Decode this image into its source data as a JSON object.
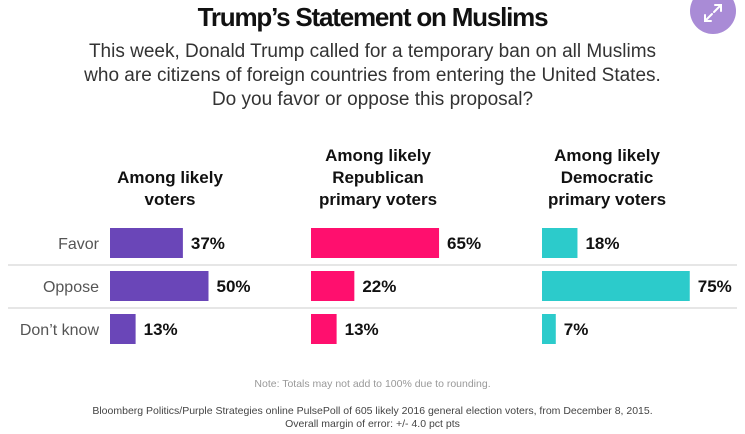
{
  "chart_data": {
    "type": "bar",
    "title": "Trump’s Statement on Muslims",
    "subtitle": "This week, Donald Trump called for a temporary ban on all Muslims who are citizens of foreign countries from entering the United States. Do you favor or oppose this proposal?",
    "categories": [
      "Favor",
      "Oppose",
      "Don’t know"
    ],
    "series": [
      {
        "name": "Among likely voters",
        "title_lines": [
          "Among likely",
          "voters"
        ],
        "values": [
          37,
          50,
          13
        ],
        "labels": [
          "37%",
          "50%",
          "13%"
        ],
        "color": "#6a46b8"
      },
      {
        "name": "Among likely Republican primary voters",
        "title_lines": [
          "Among likely",
          "Republican",
          "primary voters"
        ],
        "values": [
          65,
          22,
          13
        ],
        "labels": [
          "65%",
          "22%",
          "13%"
        ],
        "color": "#ff0f6e"
      },
      {
        "name": "Among likely Democratic primary voters",
        "title_lines": [
          "Among likely",
          "Democratic",
          "primary voters"
        ],
        "values": [
          18,
          75,
          7
        ],
        "labels": [
          "18%",
          "75%",
          "7%"
        ],
        "color": "#2ccbcb"
      }
    ],
    "unit": "%",
    "grid": false,
    "note": "Note: Totals may not add to 100% due to rounding.",
    "source_lines": [
      "Bloomberg Politics/Purple Strategies online PulsePoll of 605 likely 2016 general election voters, from December 8, 2015.",
      "Overall margin of error: +/- 4.0 pct pts"
    ]
  },
  "colors": {
    "divider": "#cccccc",
    "expand_button": "#a98bd6"
  },
  "icons": {
    "expand": "expand-arrows-icon"
  }
}
